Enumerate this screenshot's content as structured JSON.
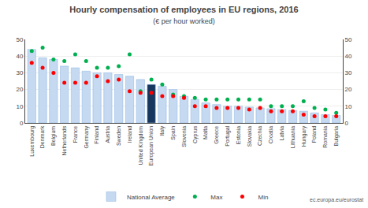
{
  "chart_data": {
    "type": "bar",
    "title": "Hourly compensation of employees in EU regions, 2016",
    "subtitle": "(€ per hour worked)",
    "categories": [
      "Luxembourg",
      "Denmark",
      "Belgium",
      "Netherlands",
      "France",
      "Germany",
      "Finland",
      "Austria",
      "Sweden",
      "Ireland",
      "United Kingdom",
      "European Union",
      "Italy",
      "Spain",
      "Slovenia",
      "Cyprus",
      "Malta",
      "Greece",
      "Portugal",
      "Estonia",
      "Slovakia",
      "Czechia",
      "Croatia",
      "Latvia",
      "Lithuania",
      "Hungary",
      "Poland",
      "Romania",
      "Bulgaria"
    ],
    "series": [
      {
        "name": "National Average",
        "type": "bar",
        "color": "#c5d9f1",
        "colors": [
          "#c5d9f1",
          "#c5d9f1",
          "#c5d9f1",
          "#c5d9f1",
          "#c5d9f1",
          "#c5d9f1",
          "#c5d9f1",
          "#c5d9f1",
          "#c5d9f1",
          "#c5d9f1",
          "#c5d9f1",
          "#17375e",
          "#c5d9f1",
          "#c5d9f1",
          "#c5d9f1",
          "#c5d9f1",
          "#c5d9f1",
          "#c5d9f1",
          "#c5d9f1",
          "#c5d9f1",
          "#c5d9f1",
          "#c5d9f1",
          "#c5d9f1",
          "#c5d9f1",
          "#c5d9f1",
          "#c5d9f1",
          "#c5d9f1",
          "#c5d9f1",
          "#c5d9f1"
        ],
        "values": [
          44,
          39,
          38,
          34,
          33,
          31,
          30,
          30,
          29,
          28,
          26,
          23,
          22,
          20,
          16,
          14,
          12,
          11,
          10,
          10,
          9.5,
          9,
          8.5,
          8,
          7.5,
          7,
          6,
          5,
          4.5
        ]
      },
      {
        "name": "Max",
        "type": "scatter",
        "marker": "circle",
        "color": "#00b050",
        "values": [
          43,
          45,
          38,
          37,
          41,
          37,
          33,
          33,
          34,
          41,
          19,
          26,
          23,
          17,
          16,
          15,
          14,
          14,
          14,
          14,
          14,
          14,
          10,
          10,
          10,
          13,
          9,
          8,
          6
        ]
      },
      {
        "name": "Min",
        "type": "scatter",
        "marker": "circle",
        "color": "#ff0000",
        "values": [
          36,
          33,
          30,
          24,
          24,
          24,
          28,
          25,
          26,
          19,
          18,
          18,
          16,
          16,
          15,
          10,
          10,
          9,
          9,
          9,
          8,
          9,
          7,
          7,
          7,
          5,
          4,
          4,
          4
        ]
      }
    ],
    "ylim": [
      0,
      50
    ],
    "yticks": [
      0,
      10,
      20,
      30,
      40,
      50
    ],
    "y2lim": [
      0,
      50
    ],
    "y2ticks": [
      0,
      10,
      20,
      30,
      40,
      50
    ],
    "grid": true,
    "legend": "bottom",
    "annotations": [
      "ec.europa.eu/eurostat"
    ]
  }
}
